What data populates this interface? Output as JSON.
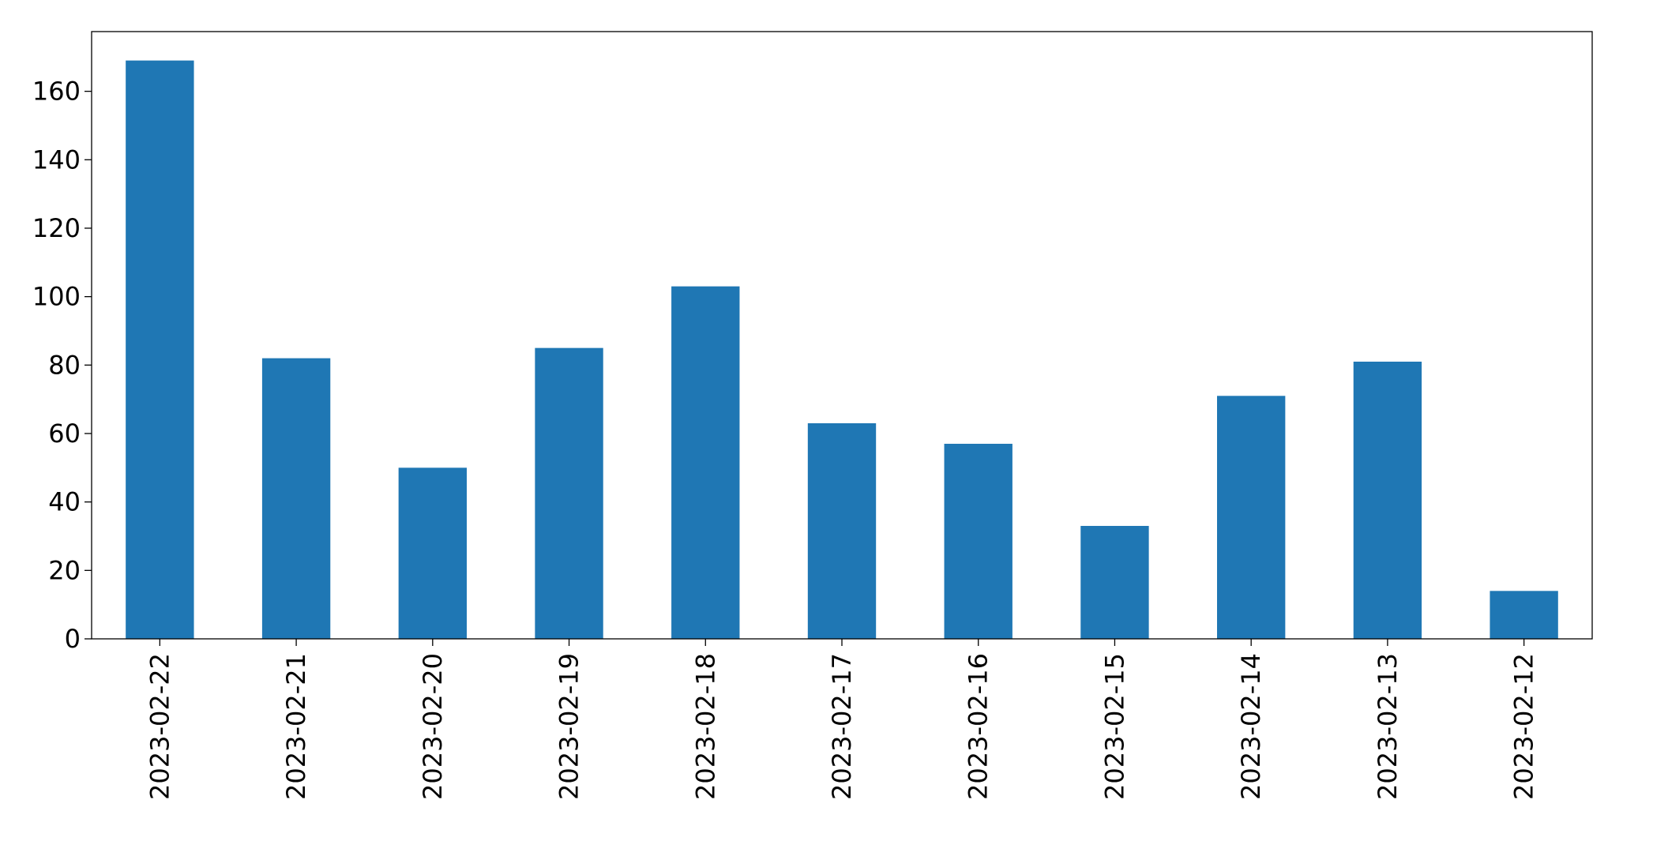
{
  "chart_data": {
    "type": "bar",
    "categories": [
      "2023-02-22",
      "2023-02-21",
      "2023-02-20",
      "2023-02-19",
      "2023-02-18",
      "2023-02-17",
      "2023-02-16",
      "2023-02-15",
      "2023-02-14",
      "2023-02-13",
      "2023-02-12"
    ],
    "values": [
      169,
      82,
      50,
      85,
      103,
      63,
      57,
      33,
      71,
      81,
      14
    ],
    "color": "#1f77b4",
    "ylim": [
      0,
      177.45
    ],
    "yticks": [
      0,
      20,
      40,
      60,
      80,
      100,
      120,
      140,
      160
    ],
    "grid": false
  }
}
